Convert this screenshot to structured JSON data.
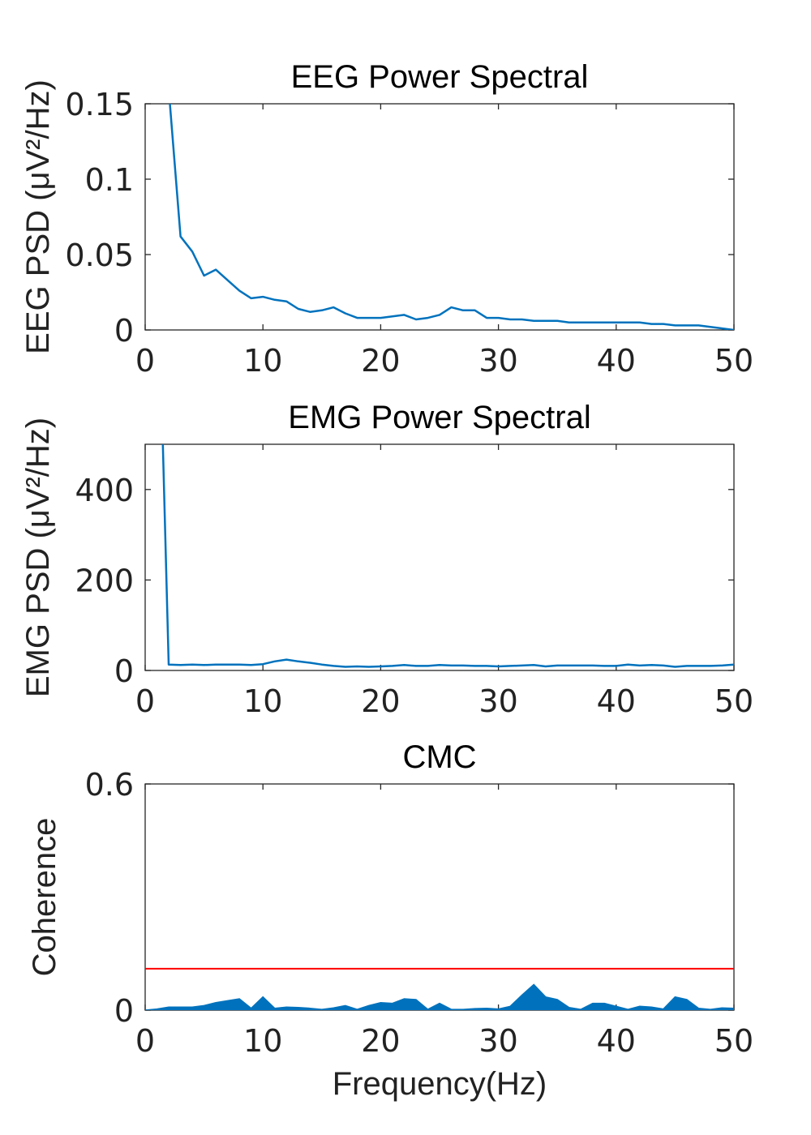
{
  "chart_data": [
    {
      "type": "line",
      "title": "EEG Power Spectral",
      "xlabel": "",
      "ylabel": "EEG PSD (μV²/Hz)",
      "xlim": [
        0,
        50
      ],
      "ylim": [
        0,
        0.15
      ],
      "xticks": [
        "0",
        "10",
        "20",
        "30",
        "40",
        "50"
      ],
      "yticks": [
        "0",
        "0.05",
        "0.1",
        "0.15"
      ],
      "color": "#0072BD",
      "series": [
        {
          "x": [
            2,
            3,
            4,
            5,
            6,
            7,
            8,
            9,
            10,
            11,
            12,
            13,
            14,
            15,
            16,
            17,
            18,
            19,
            20,
            21,
            22,
            23,
            24,
            25,
            26,
            27,
            28,
            29,
            30,
            31,
            32,
            33,
            34,
            35,
            36,
            37,
            38,
            39,
            40,
            41,
            42,
            43,
            44,
            45,
            46,
            47,
            48,
            49,
            50
          ],
          "y": [
            0.16,
            0.062,
            0.052,
            0.036,
            0.04,
            0.033,
            0.026,
            0.021,
            0.022,
            0.02,
            0.019,
            0.014,
            0.012,
            0.013,
            0.015,
            0.011,
            0.008,
            0.008,
            0.008,
            0.009,
            0.01,
            0.007,
            0.008,
            0.01,
            0.015,
            0.013,
            0.013,
            0.008,
            0.008,
            0.007,
            0.007,
            0.006,
            0.006,
            0.006,
            0.005,
            0.005,
            0.005,
            0.005,
            0.005,
            0.005,
            0.005,
            0.004,
            0.004,
            0.003,
            0.003,
            0.003,
            0.002,
            0.001,
            0.0
          ]
        }
      ]
    },
    {
      "type": "line",
      "title": "EMG Power Spectral",
      "xlabel": "",
      "ylabel": "EMG PSD (μV²/Hz)",
      "xlim": [
        0,
        50
      ],
      "ylim": [
        0,
        500
      ],
      "xticks": [
        "0",
        "10",
        "20",
        "30",
        "40",
        "50"
      ],
      "yticks": [
        "0",
        "200",
        "400"
      ],
      "color": "#0072BD",
      "series": [
        {
          "x": [
            1.5,
            2,
            3,
            4,
            5,
            6,
            7,
            8,
            9,
            10,
            11,
            12,
            13,
            14,
            15,
            16,
            17,
            18,
            19,
            20,
            21,
            22,
            23,
            24,
            25,
            26,
            27,
            28,
            29,
            30,
            31,
            32,
            33,
            34,
            35,
            36,
            37,
            38,
            39,
            40,
            41,
            42,
            43,
            44,
            45,
            46,
            47,
            48,
            49,
            50
          ],
          "y": [
            500,
            13,
            12,
            13,
            12,
            13,
            13,
            13,
            12,
            14,
            20,
            24,
            20,
            17,
            13,
            10,
            8,
            9,
            8,
            9,
            10,
            12,
            10,
            10,
            12,
            11,
            11,
            10,
            10,
            9,
            10,
            11,
            12,
            9,
            11,
            11,
            11,
            11,
            10,
            10,
            13,
            11,
            12,
            11,
            8,
            10,
            10,
            10,
            11,
            13
          ]
        }
      ]
    },
    {
      "type": "area",
      "title": "CMC",
      "xlabel": "Frequency(Hz)",
      "ylabel": "Coherence",
      "xlim": [
        0,
        50
      ],
      "ylim": [
        0,
        0.6
      ],
      "xticks": [
        "0",
        "10",
        "20",
        "30",
        "40",
        "50"
      ],
      "yticks": [
        "0",
        "0.6"
      ],
      "color": "#0072BD",
      "threshold": {
        "y": 0.11,
        "color": "#ff0000"
      },
      "series": [
        {
          "x": [
            0,
            1,
            2,
            3,
            4,
            5,
            6,
            7,
            8,
            9,
            10,
            11,
            12,
            13,
            14,
            15,
            16,
            17,
            18,
            19,
            20,
            21,
            22,
            23,
            24,
            25,
            26,
            27,
            28,
            29,
            30,
            31,
            32,
            33,
            34,
            35,
            36,
            37,
            38,
            39,
            40,
            41,
            42,
            43,
            44,
            45,
            46,
            47,
            48,
            49,
            50
          ],
          "y": [
            0.0,
            0.003,
            0.008,
            0.008,
            0.008,
            0.012,
            0.02,
            0.025,
            0.03,
            0.005,
            0.035,
            0.005,
            0.008,
            0.007,
            0.005,
            0.002,
            0.006,
            0.012,
            0.002,
            0.012,
            0.02,
            0.018,
            0.03,
            0.028,
            0.002,
            0.018,
            0.002,
            0.002,
            0.004,
            0.005,
            0.003,
            0.01,
            0.04,
            0.068,
            0.035,
            0.028,
            0.007,
            0.002,
            0.018,
            0.018,
            0.01,
            0.002,
            0.01,
            0.008,
            0.003,
            0.035,
            0.028,
            0.005,
            0.002,
            0.006,
            0.005
          ]
        }
      ]
    }
  ]
}
